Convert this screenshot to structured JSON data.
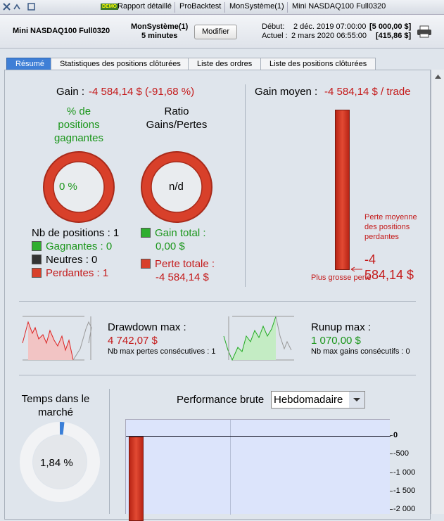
{
  "toolbar": {
    "demo_badge": "DEMO",
    "tabs": [
      "Rapport détaillé",
      "ProBacktest",
      "MonSystème(1)",
      "Mini NASDAQ100 Full0320"
    ]
  },
  "header": {
    "instrument": "Mini NASDAQ100 Full0320",
    "system": "MonSystème(1)",
    "timeframe": "5 minutes",
    "button": "Modifier",
    "start_label": "Début:",
    "start_date": "2 déc. 2019 07:00:00",
    "start_capital": "[5 000,00 $]",
    "current_label": "Actuel :",
    "current_date": "2 mars 2020 06:55:00",
    "current_capital": "[415,86 $]"
  },
  "tabs": [
    "Résumé",
    "Statistiques des positions clôturées",
    "Liste des ordres",
    "Liste des positions clôturées"
  ],
  "summary": {
    "gain_label": "Gain :",
    "gain_value": "-4 584,14 $ (-91,68 %)",
    "winning_title": "% de positions gagnantes",
    "winning_value": "0 %",
    "ratio_title": "Ratio Gains/Pertes",
    "ratio_value": "n/d",
    "positions": "Nb de positions : 1",
    "winners": "Gagnantes : 0",
    "neutral": "Neutres : 0",
    "losers": "Perdantes : 1",
    "total_gain_label": "Gain total :",
    "total_gain": "0,00 $",
    "total_loss_label": "Perte totale :",
    "total_loss": "-4 584,14 $"
  },
  "average": {
    "label": "Gain moyen :",
    "value": "-4 584,14 $ / trade",
    "loss_label": "Perte moyenne des positions perdantes",
    "loss_value": "-4 584,14 $",
    "biggest_loss": "Plus grosse perte"
  },
  "drawdown": {
    "label": "Drawdown max :",
    "value": "4 742,07 $",
    "detail": "Nb max pertes consécutives : 1"
  },
  "runup": {
    "label": "Runup max :",
    "value": "1 070,00 $",
    "detail": "Nb max gains consécutifs : 0"
  },
  "market_time": {
    "title": "Temps dans le marché",
    "value": "1,84 %"
  },
  "performance": {
    "title": "Performance brute",
    "period": "Hebdomadaire",
    "axis_labels": [
      "0",
      "-500",
      "-1 000",
      "-1 500",
      "-2 000"
    ]
  }
}
